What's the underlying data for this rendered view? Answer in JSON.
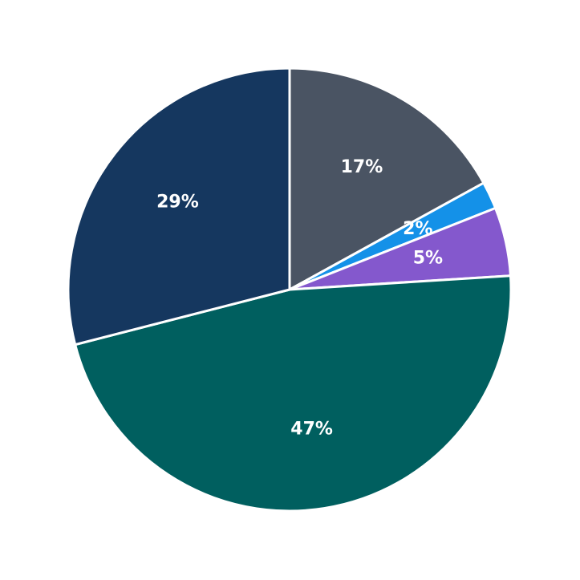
{
  "chart_data": {
    "type": "pie",
    "values": [
      17,
      2,
      5,
      47,
      29
    ],
    "value_labels": [
      "17%",
      "2%",
      "5%",
      "47%",
      "29%"
    ],
    "colors": [
      "#4a5463",
      "#1491e8",
      "#8458cd",
      "#005f5f",
      "#15375f"
    ]
  }
}
